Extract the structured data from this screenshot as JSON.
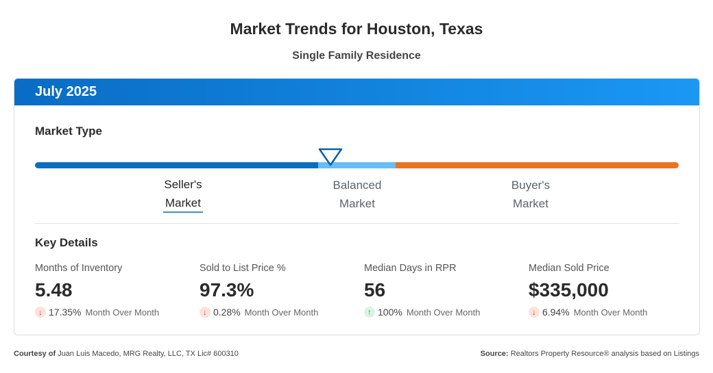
{
  "title": "Market Trends for Houston, Texas",
  "subtitle": "Single Family Residence",
  "period": "July 2025",
  "market_type": {
    "heading": "Market Type",
    "labels": [
      {
        "l1": "Seller's",
        "l2": "Market"
      },
      {
        "l1": "Balanced",
        "l2": "Market"
      },
      {
        "l1": "Buyer's",
        "l2": "Market"
      }
    ],
    "selected": "Seller's Market",
    "colors": {
      "seller": "#0570c0",
      "balanced": "#66bdf8",
      "buyer": "#ee7320"
    }
  },
  "key_details": {
    "heading": "Key Details",
    "stats": [
      {
        "label": "Months of Inventory",
        "value": "5.48",
        "direction": "down",
        "change": "17.35%",
        "period": "Month Over Month"
      },
      {
        "label": "Sold to List Price %",
        "value": "97.3%",
        "direction": "down",
        "change": "0.28%",
        "period": "Month Over Month"
      },
      {
        "label": "Median Days in RPR",
        "value": "56",
        "direction": "up",
        "change": "100%",
        "period": "Month Over Month"
      },
      {
        "label": "Median Sold Price",
        "value": "$335,000",
        "direction": "down",
        "change": "6.94%",
        "period": "Month Over Month"
      }
    ]
  },
  "footer": {
    "courtesy_label": "Courtesy of",
    "courtesy": "Juan Luis Macedo, MRG Realty, LLC, TX Lic# 600310",
    "source_label": "Source:",
    "source": "Realtors Property Resource® analysis based on Listings"
  }
}
